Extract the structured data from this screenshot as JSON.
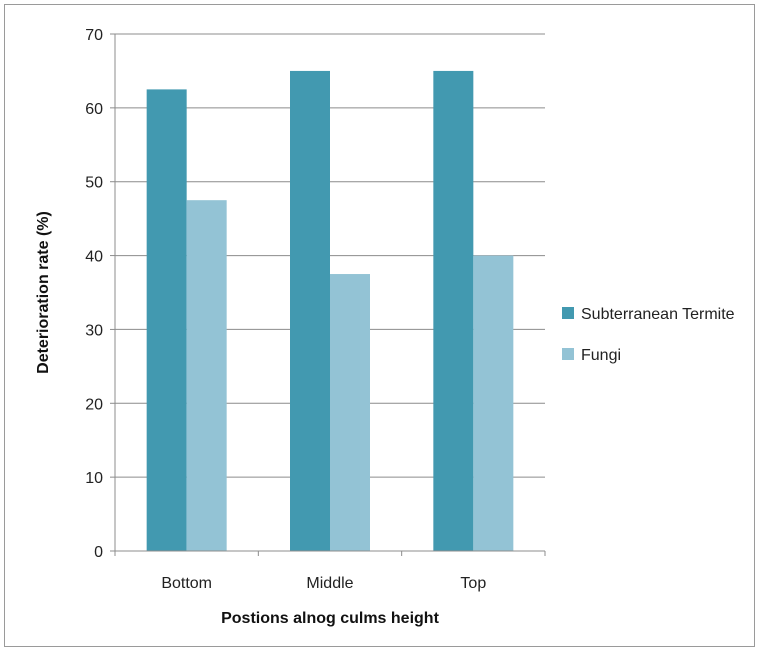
{
  "chart_data": {
    "type": "bar",
    "title": "",
    "xlabel": "Postions alnog culms height",
    "ylabel": "Deterioration rate (%)",
    "categories": [
      "Bottom",
      "Middle",
      "Top"
    ],
    "series": [
      {
        "name": "Subterranean Termite",
        "values": [
          62.5,
          65,
          65
        ],
        "color": "#4299b0"
      },
      {
        "name": "Fungi",
        "values": [
          47.5,
          37.5,
          40
        ],
        "color": "#93c3d5"
      }
    ],
    "ylim": [
      0,
      70
    ],
    "yticks": [
      0,
      10,
      20,
      30,
      40,
      50,
      60,
      70
    ],
    "grid": true,
    "legend_position": "right"
  }
}
